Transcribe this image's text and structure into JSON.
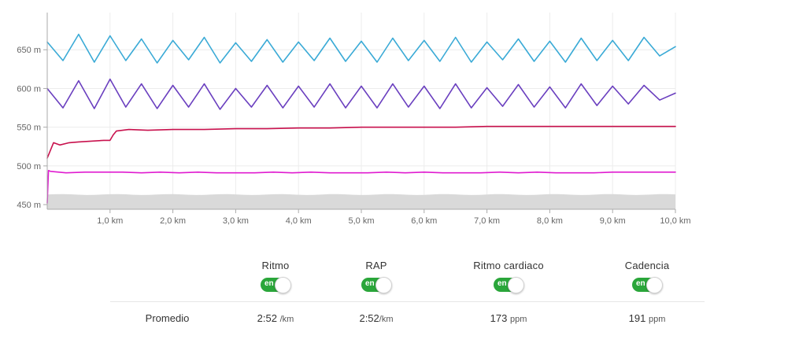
{
  "chart_data": {
    "type": "line",
    "y_ticks": [
      "650 m",
      "600 m",
      "550 m",
      "500 m",
      "450 m"
    ],
    "y_tick_values": [
      650,
      600,
      550,
      500,
      450
    ],
    "ylim": [
      444,
      698
    ],
    "x_ticks": [
      "1,0 km",
      "2,0 km",
      "3,0 km",
      "4,0 km",
      "5,0 km",
      "6,0 km",
      "7,0 km",
      "8,0 km",
      "9,0 km",
      "10,0 km"
    ],
    "x_tick_values": [
      1,
      2,
      3,
      4,
      5,
      6,
      7,
      8,
      9,
      10
    ],
    "xlim": [
      0,
      10
    ],
    "grid": true,
    "series": [
      {
        "color": "#3aaad6",
        "x": [
          0,
          0.25,
          0.5,
          0.75,
          1,
          1.25,
          1.5,
          1.75,
          2,
          2.25,
          2.5,
          2.75,
          3,
          3.25,
          3.5,
          3.75,
          4,
          4.25,
          4.5,
          4.75,
          5,
          5.25,
          5.5,
          5.75,
          6,
          6.25,
          6.5,
          6.75,
          7,
          7.25,
          7.5,
          7.75,
          8,
          8.25,
          8.5,
          8.75,
          9,
          9.25,
          9.5,
          9.75,
          10
        ],
        "values": [
          660,
          636,
          670,
          634,
          668,
          636,
          664,
          633,
          662,
          637,
          666,
          633,
          659,
          635,
          663,
          634,
          660,
          636,
          665,
          635,
          661,
          634,
          665,
          636,
          662,
          635,
          666,
          634,
          660,
          637,
          664,
          635,
          661,
          634,
          665,
          636,
          662,
          636,
          666,
          642,
          654
        ]
      },
      {
        "color": "#6a3fbf",
        "x": [
          0,
          0.25,
          0.5,
          0.75,
          1,
          1.25,
          1.5,
          1.75,
          2,
          2.25,
          2.5,
          2.75,
          3,
          3.25,
          3.5,
          3.75,
          4,
          4.25,
          4.5,
          4.75,
          5,
          5.25,
          5.5,
          5.75,
          6,
          6.25,
          6.5,
          6.75,
          7,
          7.25,
          7.5,
          7.75,
          8,
          8.25,
          8.5,
          8.75,
          9,
          9.25,
          9.5,
          9.75,
          10
        ],
        "values": [
          600,
          575,
          610,
          574,
          612,
          576,
          606,
          574,
          604,
          576,
          606,
          573,
          600,
          576,
          604,
          575,
          603,
          576,
          606,
          575,
          603,
          575,
          606,
          576,
          603,
          574,
          606,
          575,
          601,
          577,
          605,
          576,
          602,
          575,
          606,
          578,
          603,
          580,
          604,
          585,
          594
        ]
      },
      {
        "color": "#c8114d",
        "x": [
          0,
          0.1,
          0.2,
          0.35,
          0.5,
          0.7,
          0.9,
          1.0,
          1.05,
          1.1,
          1.3,
          1.6,
          2.0,
          2.5,
          3.0,
          3.5,
          4.0,
          4.5,
          5.0,
          5.5,
          6.0,
          6.5,
          7.0,
          7.5,
          8.0,
          8.5,
          9.0,
          9.5,
          10.0
        ],
        "values": [
          510,
          530,
          527,
          530,
          531,
          532,
          533,
          533,
          540,
          545,
          547,
          546,
          547,
          547,
          548,
          548,
          549,
          549,
          550,
          550,
          550,
          550,
          551,
          551,
          551,
          551,
          551,
          551,
          551
        ]
      },
      {
        "color": "#e01cd0",
        "x": [
          0,
          0.02,
          0.05,
          0.3,
          0.6,
          0.9,
          1.2,
          1.5,
          1.8,
          2.1,
          2.4,
          2.7,
          3.0,
          3.3,
          3.6,
          3.9,
          4.2,
          4.5,
          4.8,
          5.1,
          5.4,
          5.7,
          6.0,
          6.3,
          6.6,
          6.9,
          7.2,
          7.5,
          7.8,
          8.1,
          8.4,
          8.7,
          9.0,
          9.3,
          9.6,
          10.0
        ],
        "values": [
          452,
          494,
          493,
          491,
          492,
          492,
          492,
          491,
          492,
          491,
          492,
          491,
          491,
          491,
          492,
          491,
          492,
          491,
          491,
          491,
          492,
          491,
          492,
          491,
          491,
          491,
          492,
          491,
          492,
          491,
          491,
          491,
          492,
          492,
          492,
          492
        ]
      }
    ],
    "elevation_band": {
      "color": "#d9d9d9",
      "top": 463,
      "bottom": 444
    }
  },
  "stats": {
    "columns": [
      {
        "title": "Ritmo",
        "toggle": "en"
      },
      {
        "title": "RAP",
        "toggle": "en"
      },
      {
        "title": "Ritmo cardiaco",
        "toggle": "en"
      },
      {
        "title": "Cadencia",
        "toggle": "en"
      }
    ],
    "row_label": "Promedio",
    "values": [
      {
        "value": "2:52",
        "unit": "/km"
      },
      {
        "value": "2:52",
        "unit": "/km"
      },
      {
        "value": "173",
        "unit": "ppm"
      },
      {
        "value": "191",
        "unit": "ppm"
      }
    ]
  }
}
